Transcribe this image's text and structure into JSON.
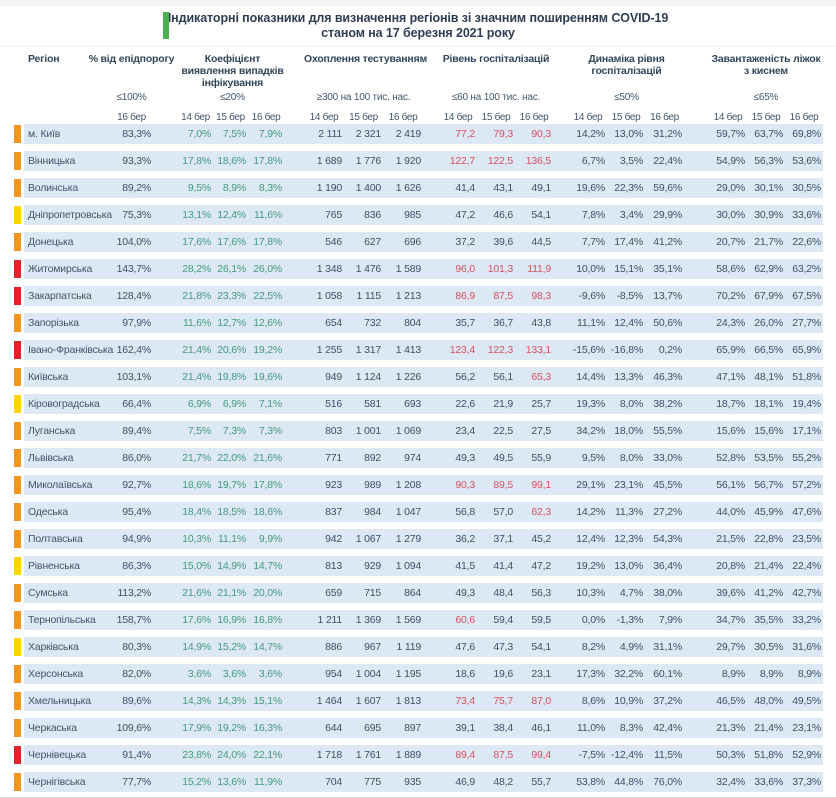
{
  "title": {
    "line1": "Індикаторні показники для визначення регіонів зі значним поширенням COVID-19",
    "line2": "станом на 17 березня 2021 року"
  },
  "columns": {
    "region_label": "Регіон",
    "groups": [
      {
        "id": "epid",
        "label": "% від епідпорогу",
        "threshold": "≤100%",
        "dates": [
          "16 бер"
        ]
      },
      {
        "id": "coef",
        "label": "Коефіцієнт виявлення випадків інфікування",
        "threshold": "≤20%",
        "dates": [
          "14 бер",
          "15 бер",
          "16 бер"
        ]
      },
      {
        "id": "test",
        "label": "Охоплення тестуванням",
        "threshold": "≥300 на 100 тис. нас.",
        "dates": [
          "14 бер",
          "15 бер",
          "16 бер"
        ]
      },
      {
        "id": "hosp",
        "label": "Рівень госпіталізацій",
        "threshold": "≤60 на 100 тис. нас.",
        "dates": [
          "14 бер",
          "15 бер",
          "16 бер"
        ]
      },
      {
        "id": "dyn",
        "label": "Динаміка рівня госпіталізацій",
        "threshold": "≤50%",
        "dates": [
          "14 бер",
          "15 бер",
          "16 бер"
        ]
      },
      {
        "id": "beds",
        "label": "Завантаженість ліжок з киснем",
        "threshold": "≤65%",
        "dates": [
          "14 бер",
          "15 бер",
          "16 бер"
        ]
      }
    ]
  },
  "colors": {
    "status": {
      "orange": "#F7941E",
      "yellow": "#FFD403",
      "red": "#E1242B"
    },
    "row_bg": "#DCE8F4",
    "value_text": "#3D5166",
    "coef_text": "#43997D",
    "alert_text": "#D8505F",
    "header_text": "#33475B",
    "title_accent": "#4CAF50"
  },
  "hosp_alert_threshold": 60,
  "rows": [
    {
      "region": "м. Київ",
      "status": "orange",
      "epid": "83,3%",
      "coef": [
        "7,0%",
        "7,5%",
        "7,9%"
      ],
      "test": [
        "2 111",
        "2 321",
        "2 419"
      ],
      "hosp": [
        "77,2",
        "79,3",
        "90,3"
      ],
      "dyn": [
        "14,2%",
        "13,0%",
        "31,2%"
      ],
      "beds": [
        "59,7%",
        "63,7%",
        "69,8%"
      ]
    },
    {
      "region": "Вінницька",
      "status": "orange",
      "epid": "93,3%",
      "coef": [
        "17,8%",
        "18,6%",
        "17,8%"
      ],
      "test": [
        "1 689",
        "1 776",
        "1 920"
      ],
      "hosp": [
        "122,7",
        "122,5",
        "136,5"
      ],
      "dyn": [
        "6,7%",
        "3,5%",
        "22,4%"
      ],
      "beds": [
        "54,9%",
        "56,3%",
        "53,6%"
      ]
    },
    {
      "region": "Волинська",
      "status": "orange",
      "epid": "89,2%",
      "coef": [
        "9,5%",
        "8,9%",
        "8,3%"
      ],
      "test": [
        "1 190",
        "1 400",
        "1 626"
      ],
      "hosp": [
        "41,4",
        "43,1",
        "49,1"
      ],
      "dyn": [
        "19,6%",
        "22,3%",
        "59,6%"
      ],
      "beds": [
        "29,0%",
        "30,1%",
        "30,5%"
      ]
    },
    {
      "region": "Дніпропетровська",
      "status": "yellow",
      "epid": "75,3%",
      "coef": [
        "13,1%",
        "12,4%",
        "11,6%"
      ],
      "test": [
        "765",
        "836",
        "985"
      ],
      "hosp": [
        "47,2",
        "46,6",
        "54,1"
      ],
      "dyn": [
        "7,8%",
        "3,4%",
        "29,9%"
      ],
      "beds": [
        "30,0%",
        "30,9%",
        "33,6%"
      ]
    },
    {
      "region": "Донецька",
      "status": "orange",
      "epid": "104,0%",
      "coef": [
        "17,6%",
        "17,6%",
        "17,8%"
      ],
      "test": [
        "546",
        "627",
        "696"
      ],
      "hosp": [
        "37,2",
        "39,6",
        "44,5"
      ],
      "dyn": [
        "7,7%",
        "17,4%",
        "41,2%"
      ],
      "beds": [
        "20,7%",
        "21,7%",
        "22,6%"
      ]
    },
    {
      "region": "Житомирська",
      "status": "red",
      "epid": "143,7%",
      "coef": [
        "28,2%",
        "26,1%",
        "26,0%"
      ],
      "test": [
        "1 348",
        "1 476",
        "1 589"
      ],
      "hosp": [
        "96,0",
        "101,3",
        "111,9"
      ],
      "dyn": [
        "10,0%",
        "15,1%",
        "35,1%"
      ],
      "beds": [
        "58,6%",
        "62,9%",
        "63,2%"
      ]
    },
    {
      "region": "Закарпатська",
      "status": "red",
      "epid": "128,4%",
      "coef": [
        "21,8%",
        "23,3%",
        "22,5%"
      ],
      "test": [
        "1 058",
        "1 115",
        "1 213"
      ],
      "hosp": [
        "86,9",
        "87,5",
        "98,3"
      ],
      "dyn": [
        "-9,6%",
        "-8,5%",
        "13,7%"
      ],
      "beds": [
        "70,2%",
        "67,9%",
        "67,5%"
      ]
    },
    {
      "region": "Запорізька",
      "status": "orange",
      "epid": "97,9%",
      "coef": [
        "11,6%",
        "12,7%",
        "12,6%"
      ],
      "test": [
        "654",
        "732",
        "804"
      ],
      "hosp": [
        "35,7",
        "36,7",
        "43,8"
      ],
      "dyn": [
        "11,1%",
        "12,4%",
        "50,6%"
      ],
      "beds": [
        "24,3%",
        "26,0%",
        "27,7%"
      ]
    },
    {
      "region": "Івано-Франківська",
      "status": "red",
      "epid": "162,4%",
      "coef": [
        "21,4%",
        "20,6%",
        "19,2%"
      ],
      "test": [
        "1 255",
        "1 317",
        "1 413"
      ],
      "hosp": [
        "123,4",
        "122,3",
        "133,1"
      ],
      "dyn": [
        "-15,6%",
        "-16,8%",
        "0,2%"
      ],
      "beds": [
        "65,9%",
        "66,5%",
        "65,9%"
      ]
    },
    {
      "region": "Київська",
      "status": "orange",
      "epid": "103,1%",
      "coef": [
        "21,4%",
        "19,8%",
        "19,6%"
      ],
      "test": [
        "949",
        "1 124",
        "1 226"
      ],
      "hosp": [
        "56,2",
        "56,1",
        "65,3"
      ],
      "dyn": [
        "14,4%",
        "13,3%",
        "46,3%"
      ],
      "beds": [
        "47,1%",
        "48,1%",
        "51,8%"
      ]
    },
    {
      "region": "Кіровоградська",
      "status": "yellow",
      "epid": "66,4%",
      "coef": [
        "6,9%",
        "6,9%",
        "7,1%"
      ],
      "test": [
        "516",
        "581",
        "693"
      ],
      "hosp": [
        "22,6",
        "21,9",
        "25,7"
      ],
      "dyn": [
        "19,3%",
        "8,0%",
        "38,2%"
      ],
      "beds": [
        "18,7%",
        "18,1%",
        "19,4%"
      ]
    },
    {
      "region": "Луганська",
      "status": "orange",
      "epid": "89,4%",
      "coef": [
        "7,5%",
        "7,3%",
        "7,3%"
      ],
      "test": [
        "803",
        "1 001",
        "1 069"
      ],
      "hosp": [
        "23,4",
        "22,5",
        "27,5"
      ],
      "dyn": [
        "34,2%",
        "18,0%",
        "55,5%"
      ],
      "beds": [
        "15,6%",
        "15,6%",
        "17,1%"
      ]
    },
    {
      "region": "Львівська",
      "status": "orange",
      "epid": "86,0%",
      "coef": [
        "21,7%",
        "22,0%",
        "21,6%"
      ],
      "test": [
        "771",
        "892",
        "974"
      ],
      "hosp": [
        "49,3",
        "49,5",
        "55,9"
      ],
      "dyn": [
        "9,5%",
        "8,0%",
        "33,0%"
      ],
      "beds": [
        "52,8%",
        "53,5%",
        "55,2%"
      ]
    },
    {
      "region": "Миколаївська",
      "status": "orange",
      "epid": "92,7%",
      "coef": [
        "18,6%",
        "19,7%",
        "17,8%"
      ],
      "test": [
        "923",
        "989",
        "1 208"
      ],
      "hosp": [
        "90,3",
        "89,5",
        "99,1"
      ],
      "dyn": [
        "29,1%",
        "23,1%",
        "45,5%"
      ],
      "beds": [
        "56,1%",
        "56,7%",
        "57,2%"
      ]
    },
    {
      "region": "Одеська",
      "status": "orange",
      "epid": "95,4%",
      "coef": [
        "18,4%",
        "18,5%",
        "18,6%"
      ],
      "test": [
        "837",
        "984",
        "1 047"
      ],
      "hosp": [
        "56,8",
        "57,0",
        "62,3"
      ],
      "dyn": [
        "14,2%",
        "11,3%",
        "27,2%"
      ],
      "beds": [
        "44,0%",
        "45,9%",
        "47,6%"
      ]
    },
    {
      "region": "Полтавська",
      "status": "orange",
      "epid": "94,9%",
      "coef": [
        "10,3%",
        "11,1%",
        "9,9%"
      ],
      "test": [
        "942",
        "1 067",
        "1 279"
      ],
      "hosp": [
        "36,2",
        "37,1",
        "45,2"
      ],
      "dyn": [
        "12,4%",
        "12,3%",
        "54,3%"
      ],
      "beds": [
        "21,5%",
        "22,8%",
        "23,5%"
      ]
    },
    {
      "region": "Рівненська",
      "status": "yellow",
      "epid": "86,3%",
      "coef": [
        "15,0%",
        "14,9%",
        "14,7%"
      ],
      "test": [
        "813",
        "929",
        "1 094"
      ],
      "hosp": [
        "41,5",
        "41,4",
        "47,2"
      ],
      "dyn": [
        "19,2%",
        "13,0%",
        "36,4%"
      ],
      "beds": [
        "20,8%",
        "21,4%",
        "22,4%"
      ]
    },
    {
      "region": "Сумська",
      "status": "orange",
      "epid": "113,2%",
      "coef": [
        "21,6%",
        "21,1%",
        "20,0%"
      ],
      "test": [
        "659",
        "715",
        "864"
      ],
      "hosp": [
        "49,3",
        "48,4",
        "56,3"
      ],
      "dyn": [
        "10,3%",
        "4,7%",
        "38,0%"
      ],
      "beds": [
        "39,6%",
        "41,2%",
        "42,7%"
      ]
    },
    {
      "region": "Тернопільська",
      "status": "orange",
      "epid": "158,7%",
      "coef": [
        "17,6%",
        "16,9%",
        "16,8%"
      ],
      "test": [
        "1 211",
        "1 369",
        "1 569"
      ],
      "hosp": [
        "60,6",
        "59,4",
        "59,5"
      ],
      "dyn": [
        "0,0%",
        "-1,3%",
        "7,9%"
      ],
      "beds": [
        "34,7%",
        "35,5%",
        "33,2%"
      ]
    },
    {
      "region": "Харківська",
      "status": "yellow",
      "epid": "80,3%",
      "coef": [
        "14,9%",
        "15,2%",
        "14,7%"
      ],
      "test": [
        "886",
        "967",
        "1 119"
      ],
      "hosp": [
        "47,6",
        "47,3",
        "54,1"
      ],
      "dyn": [
        "8,2%",
        "4,9%",
        "31,1%"
      ],
      "beds": [
        "29,7%",
        "30,5%",
        "31,6%"
      ]
    },
    {
      "region": "Херсонська",
      "status": "orange",
      "epid": "82,0%",
      "coef": [
        "3,6%",
        "3,6%",
        "3,6%"
      ],
      "test": [
        "954",
        "1 004",
        "1 195"
      ],
      "hosp": [
        "18,6",
        "19,6",
        "23,1"
      ],
      "dyn": [
        "17,3%",
        "32,2%",
        "60,1%"
      ],
      "beds": [
        "8,9%",
        "8,9%",
        "8,9%"
      ]
    },
    {
      "region": "Хмельницька",
      "status": "orange",
      "epid": "89,6%",
      "coef": [
        "14,3%",
        "14,3%",
        "15,1%"
      ],
      "test": [
        "1 464",
        "1 607",
        "1 813"
      ],
      "hosp": [
        "73,4",
        "75,7",
        "87,0"
      ],
      "dyn": [
        "8,6%",
        "10,9%",
        "37,2%"
      ],
      "beds": [
        "46,5%",
        "48,0%",
        "49,5%"
      ]
    },
    {
      "region": "Черкаська",
      "status": "orange",
      "epid": "109,6%",
      "coef": [
        "17,9%",
        "19,2%",
        "16,3%"
      ],
      "test": [
        "644",
        "695",
        "897"
      ],
      "hosp": [
        "39,1",
        "38,4",
        "46,1"
      ],
      "dyn": [
        "11,0%",
        "8,3%",
        "42,4%"
      ],
      "beds": [
        "21,3%",
        "21,4%",
        "23,1%"
      ]
    },
    {
      "region": "Чернівецька",
      "status": "red",
      "epid": "91,4%",
      "coef": [
        "23,8%",
        "24,0%",
        "22,1%"
      ],
      "test": [
        "1 718",
        "1 761",
        "1 889"
      ],
      "hosp": [
        "89,4",
        "87,5",
        "99,4"
      ],
      "dyn": [
        "-7,5%",
        "-12,4%",
        "11,5%"
      ],
      "beds": [
        "50,3%",
        "51,8%",
        "52,9%"
      ]
    },
    {
      "region": "Чернігівська",
      "status": "orange",
      "epid": "77,7%",
      "coef": [
        "15,2%",
        "13,6%",
        "11,9%"
      ],
      "test": [
        "704",
        "775",
        "935"
      ],
      "hosp": [
        "46,9",
        "48,2",
        "55,7"
      ],
      "dyn": [
        "53,8%",
        "44,8%",
        "76,0%"
      ],
      "beds": [
        "32,4%",
        "33,6%",
        "37,3%"
      ]
    }
  ]
}
